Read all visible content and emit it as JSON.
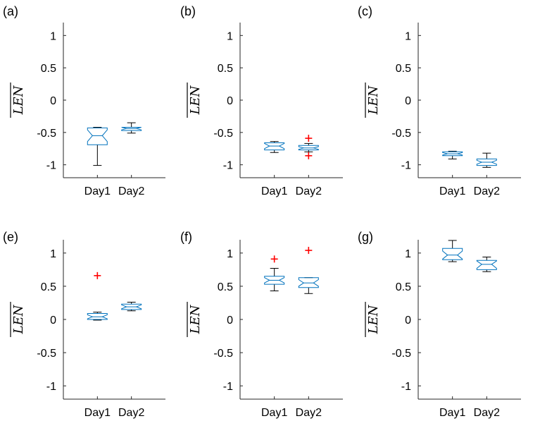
{
  "chart_data": [
    {
      "panel": "(a)",
      "type": "box",
      "ylabel": "LEN",
      "ylim": [
        -1.2,
        1.2
      ],
      "yticks": [
        1,
        0.5,
        0,
        -0.5,
        -1
      ],
      "ytick_labels": [
        "1",
        "0.5",
        "0",
        "-0.5",
        "-1"
      ],
      "categories": [
        "Day1",
        "Day2"
      ],
      "boxes": [
        {
          "whisker_low": -1.01,
          "q1": -0.69,
          "median": -0.55,
          "q3": -0.43,
          "whisker_high": -0.42,
          "notch_low": -0.64,
          "notch_high": -0.46,
          "outliers": []
        },
        {
          "whisker_low": -0.51,
          "q1": -0.47,
          "median": -0.44,
          "q3": -0.42,
          "whisker_high": -0.35,
          "notch_low": -0.46,
          "notch_high": -0.42,
          "outliers": []
        }
      ]
    },
    {
      "panel": "(b)",
      "type": "box",
      "ylabel": "LEN",
      "ylim": [
        -1.2,
        1.2
      ],
      "yticks": [
        1,
        0.5,
        0,
        -0.5,
        -1
      ],
      "ytick_labels": [
        "1",
        "0.5",
        "0",
        "-0.5",
        "-1"
      ],
      "categories": [
        "Day1",
        "Day2"
      ],
      "boxes": [
        {
          "whisker_low": -0.81,
          "q1": -0.77,
          "median": -0.71,
          "q3": -0.66,
          "whisker_high": -0.64,
          "notch_low": -0.75,
          "notch_high": -0.67,
          "outliers": []
        },
        {
          "whisker_low": -0.8,
          "q1": -0.77,
          "median": -0.74,
          "q3": -0.7,
          "whisker_high": -0.67,
          "notch_low": -0.76,
          "notch_high": -0.72,
          "outliers": [
            -0.59,
            -0.86
          ]
        }
      ]
    },
    {
      "panel": "(c)",
      "type": "box",
      "ylabel": "LEN",
      "ylim": [
        -1.2,
        1.2
      ],
      "yticks": [
        1,
        0.5,
        0,
        -0.5,
        -1
      ],
      "ytick_labels": [
        "1",
        "0.5",
        "0",
        "-0.5",
        "-1"
      ],
      "categories": [
        "Day1",
        "Day2"
      ],
      "boxes": [
        {
          "whisker_low": -0.91,
          "q1": -0.86,
          "median": -0.83,
          "q3": -0.8,
          "whisker_high": -0.79,
          "notch_low": -0.85,
          "notch_high": -0.81,
          "outliers": []
        },
        {
          "whisker_low": -1.04,
          "q1": -1.01,
          "median": -0.96,
          "q3": -0.91,
          "whisker_high": -0.82,
          "notch_low": -0.99,
          "notch_high": -0.93,
          "outliers": []
        }
      ]
    },
    {
      "panel": "(e)",
      "type": "box",
      "ylabel": "LEN",
      "ylim": [
        -1.2,
        1.2
      ],
      "yticks": [
        1,
        0.5,
        0,
        -0.5,
        -1
      ],
      "ytick_labels": [
        "1",
        "0.5",
        "0",
        "-0.5",
        "-1"
      ],
      "categories": [
        "Day1",
        "Day2"
      ],
      "boxes": [
        {
          "whisker_low": -0.01,
          "q1": 0.0,
          "median": 0.04,
          "q3": 0.09,
          "whisker_high": 0.11,
          "notch_low": 0.01,
          "notch_high": 0.07,
          "outliers": [
            0.66
          ]
        },
        {
          "whisker_low": 0.13,
          "q1": 0.15,
          "median": 0.19,
          "q3": 0.23,
          "whisker_high": 0.26,
          "notch_low": 0.16,
          "notch_high": 0.22,
          "outliers": []
        }
      ]
    },
    {
      "panel": "(f)",
      "type": "box",
      "ylabel": "LEN",
      "ylim": [
        -1.2,
        1.2
      ],
      "yticks": [
        1,
        0.5,
        0,
        -0.5,
        -1
      ],
      "ytick_labels": [
        "1",
        "0.5",
        "0",
        "-0.5",
        "-1"
      ],
      "categories": [
        "Day1",
        "Day2"
      ],
      "boxes": [
        {
          "whisker_low": 0.43,
          "q1": 0.53,
          "median": 0.59,
          "q3": 0.65,
          "whisker_high": 0.77,
          "notch_low": 0.55,
          "notch_high": 0.63,
          "outliers": [
            0.91
          ]
        },
        {
          "whisker_low": 0.39,
          "q1": 0.48,
          "median": 0.55,
          "q3": 0.63,
          "whisker_high": 0.63,
          "notch_low": 0.5,
          "notch_high": 0.6,
          "outliers": [
            1.04
          ]
        }
      ]
    },
    {
      "panel": "(g)",
      "type": "box",
      "ylabel": "LEN",
      "ylim": [
        -1.2,
        1.2
      ],
      "yticks": [
        1,
        0.5,
        0,
        -0.5,
        -1
      ],
      "ytick_labels": [
        "1",
        "0.5",
        "0",
        "-0.5",
        "-1"
      ],
      "categories": [
        "Day1",
        "Day2"
      ],
      "boxes": [
        {
          "whisker_low": 0.87,
          "q1": 0.9,
          "median": 0.97,
          "q3": 1.07,
          "whisker_high": 1.19,
          "notch_low": 0.91,
          "notch_high": 1.03,
          "outliers": []
        },
        {
          "whisker_low": 0.72,
          "q1": 0.75,
          "median": 0.83,
          "q3": 0.89,
          "whisker_high": 0.94,
          "notch_low": 0.77,
          "notch_high": 0.88,
          "outliers": []
        }
      ]
    }
  ],
  "colors": {
    "box": "#0072BD",
    "whisker": "#000000",
    "outlier": "#FF0000",
    "axis": "#262626"
  }
}
